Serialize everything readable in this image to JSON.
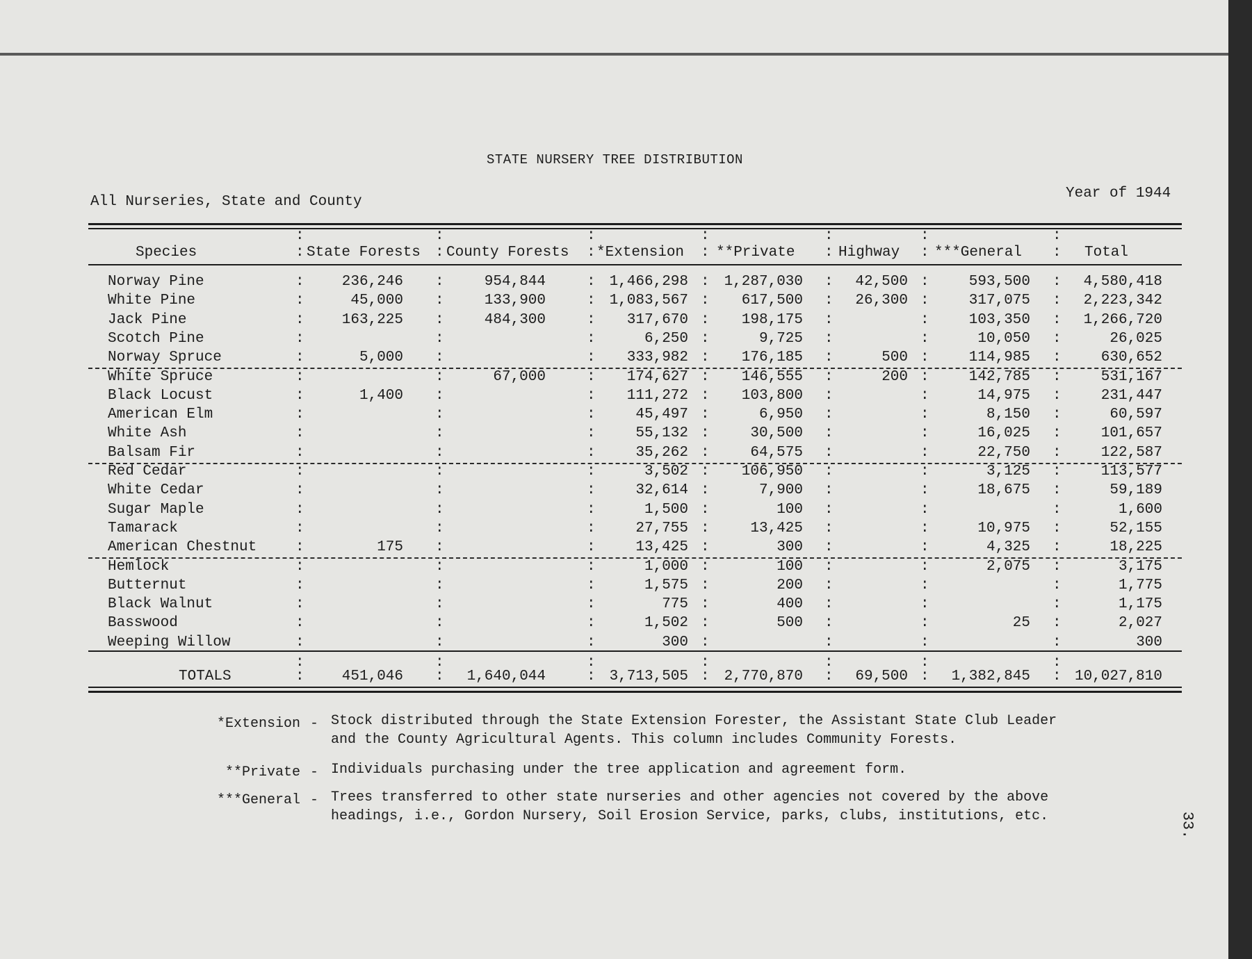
{
  "document": {
    "title": "STATE NURSERY TREE DISTRIBUTION",
    "subtitle": "All Nurseries, State and County",
    "year_label": "Year of 1944",
    "page_number": "33."
  },
  "table": {
    "columns": [
      "Species",
      "State Forests",
      "County Forests",
      "*Extension",
      "**Private",
      "Highway",
      "***General",
      "Total"
    ],
    "rows": [
      [
        "Norway Pine",
        "236,246",
        "954,844",
        "1,466,298",
        "1,287,030",
        "42,500",
        "593,500",
        "4,580,418"
      ],
      [
        "White Pine",
        "45,000",
        "133,900",
        "1,083,567",
        "617,500",
        "26,300",
        "317,075",
        "2,223,342"
      ],
      [
        "Jack Pine",
        "163,225",
        "484,300",
        "317,670",
        "198,175",
        "",
        "103,350",
        "1,266,720"
      ],
      [
        "Scotch Pine",
        "",
        "",
        "6,250",
        "9,725",
        "",
        "10,050",
        "26,025"
      ],
      [
        "Norway Spruce",
        "5,000",
        "",
        "333,982",
        "176,185",
        "500",
        "114,985",
        "630,652"
      ],
      [
        "White Spruce",
        "",
        "67,000",
        "174,627",
        "146,555",
        "200",
        "142,785",
        "531,167"
      ],
      [
        "Black Locust",
        "1,400",
        "",
        "111,272",
        "103,800",
        "",
        "14,975",
        "231,447"
      ],
      [
        "American Elm",
        "",
        "",
        "45,497",
        "6,950",
        "",
        "8,150",
        "60,597"
      ],
      [
        "White Ash",
        "",
        "",
        "55,132",
        "30,500",
        "",
        "16,025",
        "101,657"
      ],
      [
        "Balsam Fir",
        "",
        "",
        "35,262",
        "64,575",
        "",
        "22,750",
        "122,587"
      ],
      [
        "Red Cedar",
        "",
        "",
        "3,502",
        "106,950",
        "",
        "3,125",
        "113,577"
      ],
      [
        "White Cedar",
        "",
        "",
        "32,614",
        "7,900",
        "",
        "18,675",
        "59,189"
      ],
      [
        "Sugar Maple",
        "",
        "",
        "1,500",
        "100",
        "",
        "",
        "1,600"
      ],
      [
        "Tamarack",
        "",
        "",
        "27,755",
        "13,425",
        "",
        "10,975",
        "52,155"
      ],
      [
        "American Chestnut",
        "175",
        "",
        "13,425",
        "300",
        "",
        "4,325",
        "18,225"
      ],
      [
        "Hemlock",
        "",
        "",
        "1,000",
        "100",
        "",
        "2,075",
        "3,175"
      ],
      [
        "Butternut",
        "",
        "",
        "1,575",
        "200",
        "",
        "",
        "1,775"
      ],
      [
        "Black Walnut",
        "",
        "",
        "775",
        "400",
        "",
        "",
        "1,175"
      ],
      [
        "Basswood",
        "",
        "",
        "1,502",
        "500",
        "",
        "25",
        "2,027"
      ],
      [
        "Weeping Willow",
        "",
        "",
        "300",
        "",
        "",
        "",
        "300"
      ]
    ],
    "totals": [
      "TOTALS",
      "451,046",
      "1,640,044",
      "3,713,505",
      "2,770,870",
      "69,500",
      "1,382,845",
      "10,027,810"
    ]
  },
  "footnotes": [
    {
      "key": "*Extension",
      "sep": "-",
      "lines": [
        "Stock distributed through the State Extension Forester, the Assistant State Club Leader",
        "and the County Agricultural Agents.  This column includes Community Forests."
      ]
    },
    {
      "key": "**Private",
      "sep": "-",
      "lines": [
        "Individuals purchasing under the tree application and agreement form."
      ]
    },
    {
      "key": "***General",
      "sep": "-",
      "lines": [
        "Trees transferred to other state nurseries and other agencies not covered by the above",
        "headings, i.e., Gordon Nursery, Soil Erosion Service, parks, clubs, institutions, etc."
      ]
    }
  ]
}
